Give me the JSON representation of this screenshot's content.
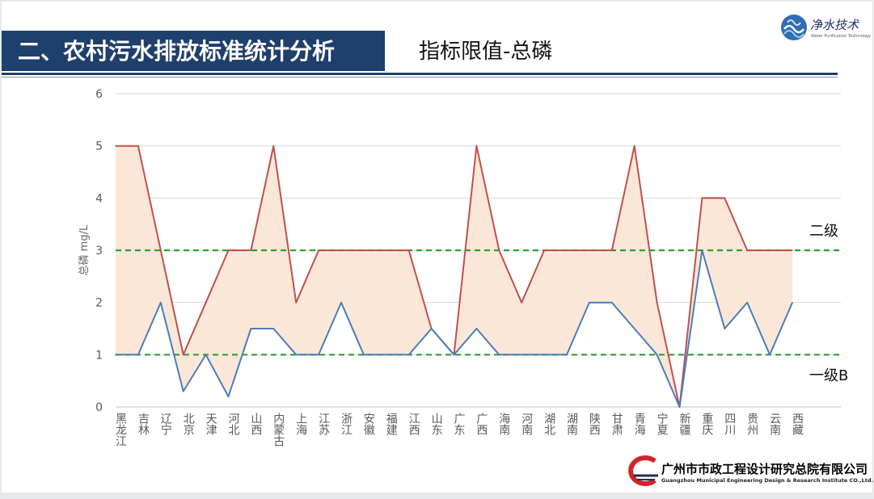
{
  "header": {
    "title": "二、农村污水排放标准统计分析",
    "subtitle": "指标限值-总磷"
  },
  "top_logo": {
    "text": "净水技术",
    "subtext": "Water Purification Technology"
  },
  "footer": {
    "company_cn": "广州市市政工程设计研究总院有限公司",
    "company_en": "Guangzhou Municipal Engineering Design & Research Institute CO.,Ltd."
  },
  "reference_lines": [
    {
      "label": "二级",
      "value": 3
    },
    {
      "label": "一级B",
      "value": 1
    }
  ],
  "chart_data": {
    "type": "line",
    "title": "",
    "xlabel": "",
    "ylabel": "总磷 mg/L",
    "ylim": [
      0,
      6
    ],
    "yticks": [
      0,
      1,
      2,
      3,
      4,
      5,
      6
    ],
    "grid": true,
    "legend": "none",
    "categories": [
      "黑龙江",
      "吉林",
      "辽宁",
      "北京",
      "天津",
      "河北",
      "山西",
      "内蒙古",
      "上海",
      "江苏",
      "浙江",
      "安徽",
      "福建",
      "江西",
      "山东",
      "广东",
      "广西",
      "海南",
      "河南",
      "湖北",
      "湖南",
      "陕西",
      "甘肃",
      "青海",
      "宁夏",
      "新疆",
      "重庆",
      "四川",
      "贵州",
      "云南",
      "西藏"
    ],
    "series": [
      {
        "values": [
          5,
          5,
          3,
          1,
          2,
          3,
          3,
          5,
          2,
          3,
          3,
          3,
          3,
          3,
          1.5,
          1,
          5,
          3,
          2,
          3,
          3,
          3,
          3,
          5,
          2,
          0,
          4,
          4,
          3,
          3,
          3
        ],
        "color": "#c0504d"
      },
      {
        "values": [
          1,
          1,
          2,
          0.3,
          1,
          0.2,
          1.5,
          1.5,
          1,
          1,
          2,
          1,
          1,
          1,
          1.5,
          1,
          1.5,
          1,
          1,
          1,
          1,
          2,
          2,
          1.5,
          1,
          0,
          3,
          1.5,
          2,
          1,
          2
        ],
        "color": "#4a7ebb"
      }
    ],
    "fill_between_color": "#fbe7d8",
    "reference_line_color": "#2ca02c"
  }
}
